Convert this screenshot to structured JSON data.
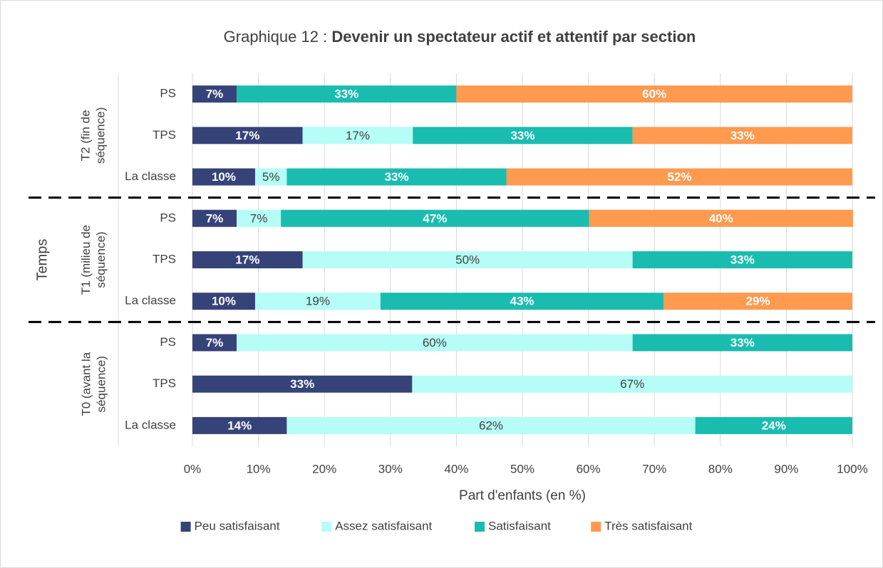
{
  "chart_data": {
    "type": "stacked_bar_horizontal",
    "title": [
      "Graphique 12 :",
      "Devenir un spectateur actif et attentif par section"
    ],
    "y_label": "Temps",
    "x_label": "Part d'enfants (en %)",
    "groups": [
      {
        "label": "T2 (fin de séquence)",
        "categories": [
          "PS",
          "TPS",
          "La classe"
        ]
      },
      {
        "label": "T1 (milieu de séquence)",
        "categories": [
          "PS",
          "TPS",
          "La classe"
        ]
      },
      {
        "label": "T0 (avant la séquence)",
        "categories": [
          "PS",
          "TPS",
          "La classe"
        ]
      }
    ],
    "series": [
      {
        "name": "Peu satisfaisant",
        "color": "#364379",
        "values": [
          6.7,
          16.7,
          9.5,
          6.7,
          16.7,
          9.5,
          6.7,
          33.3,
          14.3
        ],
        "value_labels": [
          "7%",
          "17%",
          "10%",
          "7%",
          "17%",
          "10%",
          "7%",
          "33%",
          "14%"
        ]
      },
      {
        "name": "Assez satisfaisant",
        "color": "#b5fdf6",
        "values": [
          null,
          16.7,
          4.8,
          6.7,
          50,
          19,
          60,
          66.7,
          61.9
        ],
        "value_labels": [
          null,
          "17%",
          "5%",
          "7%",
          "50%",
          "19%",
          "60%",
          "67%",
          "62%"
        ]
      },
      {
        "name": "Satisfaisant",
        "color": "#1abcb0",
        "values": [
          33.3,
          33.3,
          33.3,
          46.7,
          33.3,
          42.9,
          33.3,
          null,
          23.8
        ],
        "value_labels": [
          "33%",
          "33%",
          "33%",
          "47%",
          "33%",
          "43%",
          "33%",
          null,
          "24%"
        ]
      },
      {
        "name": "Très satisfaisant",
        "color": "#ff9a4f",
        "values": [
          60,
          33.3,
          52.4,
          40,
          null,
          28.6,
          null,
          null,
          null
        ],
        "value_labels": [
          "60%",
          "33%",
          "52%",
          "40%",
          null,
          "29%",
          null,
          null,
          null
        ]
      }
    ],
    "xlim": [
      0,
      100
    ],
    "xticks": [
      {
        "value": 0,
        "label": "0%"
      },
      {
        "value": 10,
        "label": "10%"
      },
      {
        "value": 20,
        "label": "20%"
      },
      {
        "value": 30,
        "label": "30%"
      },
      {
        "value": 40,
        "label": "40%"
      },
      {
        "value": 50,
        "label": "50%"
      },
      {
        "value": 60,
        "label": "60%"
      },
      {
        "value": 70,
        "label": "70%"
      },
      {
        "value": 80,
        "label": "80%"
      },
      {
        "value": 90,
        "label": "90%"
      },
      {
        "value": 100,
        "label": "100%"
      }
    ],
    "grid": true,
    "legend": "bottom"
  }
}
